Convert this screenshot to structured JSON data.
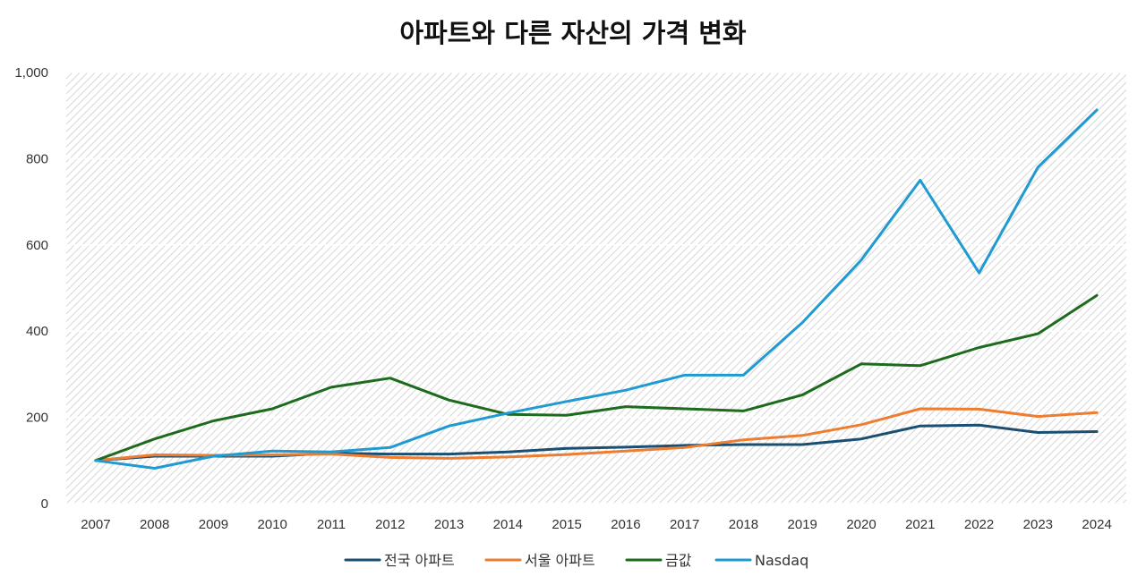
{
  "chart_data": {
    "type": "line",
    "title": "아파트와 다른 자산의 가격 변화",
    "xlabel": "",
    "ylabel": "",
    "ylim": [
      0,
      1000
    ],
    "yticks": [
      0,
      200,
      400,
      600,
      800,
      1000
    ],
    "ytick_labels": [
      "0",
      "200",
      "400",
      "600",
      "800",
      "1,000"
    ],
    "categories": [
      "2007",
      "2008",
      "2009",
      "2010",
      "2011",
      "2012",
      "2013",
      "2014",
      "2015",
      "2016",
      "2017",
      "2018",
      "2019",
      "2020",
      "2021",
      "2022",
      "2023",
      "2024"
    ],
    "grid": true,
    "legend_position": "bottom",
    "series": [
      {
        "name": "전국 아파트",
        "color": "#1b4f72",
        "values": [
          100,
          110,
          110,
          110,
          117,
          115,
          115,
          120,
          128,
          131,
          135,
          137,
          137,
          150,
          180,
          182,
          165,
          167
        ]
      },
      {
        "name": "서울 아파트",
        "color": "#ed7d31",
        "values": [
          100,
          113,
          112,
          113,
          115,
          107,
          105,
          108,
          114,
          122,
          130,
          148,
          158,
          183,
          220,
          219,
          202,
          211
        ]
      },
      {
        "name": "금값",
        "color": "#1e6b1e",
        "values": [
          100,
          150,
          192,
          220,
          270,
          291,
          240,
          207,
          205,
          225,
          220,
          215,
          252,
          324,
          320,
          362,
          394,
          483
        ]
      },
      {
        "name": "Nasdaq",
        "color": "#1f9bd1",
        "values": [
          100,
          82,
          110,
          122,
          120,
          130,
          180,
          210,
          237,
          263,
          298,
          298,
          420,
          565,
          750,
          535,
          780,
          913
        ]
      }
    ]
  }
}
